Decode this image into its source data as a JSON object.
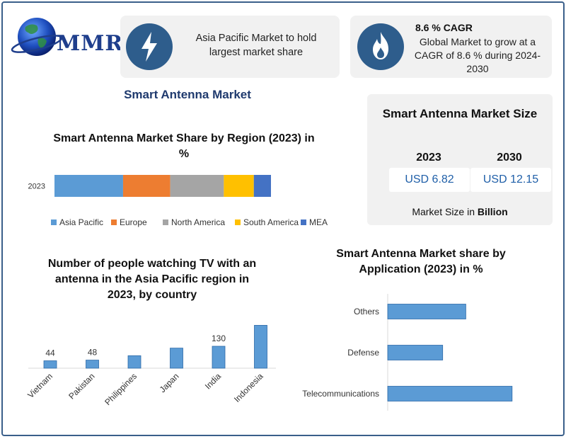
{
  "logo": {
    "text": "MMR"
  },
  "highlights": [
    {
      "icon": "lightning-icon",
      "text": "Asia Pacific Market to hold largest market share"
    },
    {
      "icon": "flame-icon",
      "title": "8.6 % CAGR",
      "text": "Global Market to grow at a CAGR of 8.6 % during 2024-2030"
    }
  ],
  "main_title": "Smart Antenna Market",
  "market_size": {
    "title": "Smart Antenna Market Size",
    "years": [
      "2023",
      "2030"
    ],
    "values": [
      "USD 6.82",
      "USD 12.15"
    ],
    "footer_prefix": "Market Size in ",
    "footer_bold": "Billion"
  },
  "colors": {
    "accent": "#2e5d8c",
    "bar_blue": "#5b9bd5"
  },
  "chart_data": [
    {
      "type": "bar",
      "orientation": "horizontal-stacked",
      "title": "Smart Antenna Market Share by Region (2023) in %",
      "categories": [
        "2023"
      ],
      "series": [
        {
          "name": "Asia Pacific",
          "values": [
            32
          ],
          "color": "#5b9bd5"
        },
        {
          "name": "Europe",
          "values": [
            22
          ],
          "color": "#ed7d31"
        },
        {
          "name": "North America",
          "values": [
            25
          ],
          "color": "#a5a5a5"
        },
        {
          "name": "South America",
          "values": [
            14
          ],
          "color": "#ffc000"
        },
        {
          "name": "MEA",
          "values": [
            8
          ],
          "color": "#4472c4"
        }
      ],
      "legend": "bottom"
    },
    {
      "type": "bar",
      "title": "Number of people watching TV with an antenna in the Asia Pacific region in 2023, by country",
      "categories": [
        "Vietnam",
        "Pakistan",
        "Philippines",
        "Japan",
        "India",
        "Indonesia"
      ],
      "values": [
        44,
        48,
        74,
        119,
        130,
        254
      ],
      "value_labels": [
        "44",
        "48",
        "",
        "",
        "130",
        ""
      ],
      "ylim": [
        0,
        260
      ]
    },
    {
      "type": "bar",
      "orientation": "horizontal",
      "title": "Smart Antenna Market share by Application (2023) in %",
      "categories": [
        "Others",
        "Defense",
        "Telecommunications"
      ],
      "values": [
        27,
        19,
        43
      ],
      "xlim": [
        0,
        45
      ]
    }
  ]
}
